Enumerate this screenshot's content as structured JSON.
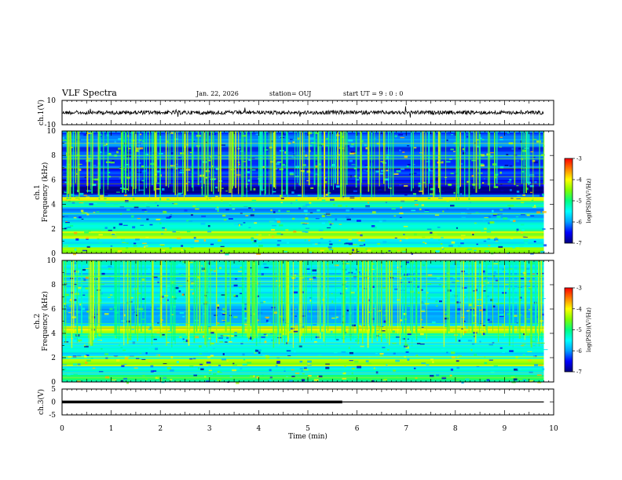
{
  "header": {
    "title": "VLF Spectra",
    "date": "Jan. 22, 2026",
    "station": "station= OUJ",
    "start": "start  UT =   9 : 0  : 0"
  },
  "colors": {
    "background": "#ffffff",
    "axes": "#000000",
    "trace": "#000000",
    "colormap": [
      "#000080",
      "#0000ff",
      "#00a0ff",
      "#00ffff",
      "#00ff80",
      "#80ff00",
      "#ffff00",
      "#ff8000",
      "#ff0000",
      "#ffffff"
    ]
  },
  "chart_data": [
    {
      "type": "line",
      "panel": "ch1-waveform",
      "ylabel": "ch.1(V)",
      "xlim": [
        0,
        10
      ],
      "ylim": [
        -10,
        10
      ],
      "yticks": [
        10,
        -10
      ],
      "series": [
        {
          "x": [
            0,
            9.8
          ],
          "y": [
            0,
            0
          ]
        }
      ]
    },
    {
      "type": "heatmap",
      "panel": "ch1-spectrogram",
      "ylabel": "ch.1\nFrequency (kHz)",
      "xlim": [
        0,
        10
      ],
      "ylim": [
        0,
        10
      ],
      "data_xlim": [
        0,
        9.8
      ],
      "yticks": [
        0,
        2,
        4,
        6,
        8,
        10
      ],
      "colorbar": {
        "label": "log(PSD)(V²/Hz)",
        "range": [
          -7,
          -3
        ],
        "ticks": [
          -3,
          -4,
          -5,
          -6,
          -7
        ]
      },
      "bands": [
        {
          "f": [
            0,
            0.5
          ],
          "level": -4.5
        },
        {
          "f": [
            0.5,
            1.2
          ],
          "level": -5.4
        },
        {
          "f": [
            1.2,
            1.8
          ],
          "level": -4.3
        },
        {
          "f": [
            1.8,
            2.6
          ],
          "level": -5.3
        },
        {
          "f": [
            2.6,
            3.8
          ],
          "level": -5.8
        },
        {
          "f": [
            3.8,
            4.3
          ],
          "level": -5.2
        },
        {
          "f": [
            4.3,
            4.6
          ],
          "level": -4.2
        },
        {
          "f": [
            4.6,
            4.8
          ],
          "level": -6.2
        },
        {
          "f": [
            4.8,
            5.5
          ],
          "level": -7.0
        },
        {
          "f": [
            5.5,
            7.0
          ],
          "level": -6.5
        },
        {
          "f": [
            7.0,
            10.0
          ],
          "level": -6.2
        }
      ]
    },
    {
      "type": "heatmap",
      "panel": "ch2-spectrogram",
      "ylabel": "ch.2\nFrequency (kHz)",
      "xlim": [
        0,
        10
      ],
      "ylim": [
        0,
        10
      ],
      "data_xlim": [
        0,
        9.8
      ],
      "yticks": [
        0,
        2,
        4,
        6,
        8,
        10
      ],
      "colorbar": {
        "label": "log(PSD)(V²/Hz)",
        "range": [
          -7,
          -3
        ],
        "ticks": [
          -3,
          -4,
          -5,
          -6,
          -7
        ]
      },
      "bands": [
        {
          "f": [
            0,
            0.6
          ],
          "level": -5.0
        },
        {
          "f": [
            0.6,
            1.3
          ],
          "level": -5.4
        },
        {
          "f": [
            1.3,
            1.9
          ],
          "level": -4.4
        },
        {
          "f": [
            1.9,
            3.6
          ],
          "level": -5.5
        },
        {
          "f": [
            3.6,
            4.0
          ],
          "level": -5.3
        },
        {
          "f": [
            4.0,
            4.6
          ],
          "level": -4.1
        },
        {
          "f": [
            4.6,
            6.5
          ],
          "level": -5.9
        },
        {
          "f": [
            6.5,
            10.0
          ],
          "level": -5.6
        }
      ]
    },
    {
      "type": "line",
      "panel": "ch3-waveform",
      "ylabel": "ch.3(V)",
      "xlabel": "Time (min)",
      "xlim": [
        0,
        10
      ],
      "ylim": [
        -5,
        5
      ],
      "yticks": [
        5,
        0,
        -5
      ],
      "xticks": [
        0,
        1,
        2,
        3,
        4,
        5,
        6,
        7,
        8,
        9,
        10
      ],
      "series": [
        {
          "x": [
            0,
            5.7
          ],
          "y": [
            0,
            0
          ]
        },
        {
          "x": [
            5.7,
            9.8
          ],
          "y": [
            0,
            0
          ]
        }
      ]
    }
  ]
}
